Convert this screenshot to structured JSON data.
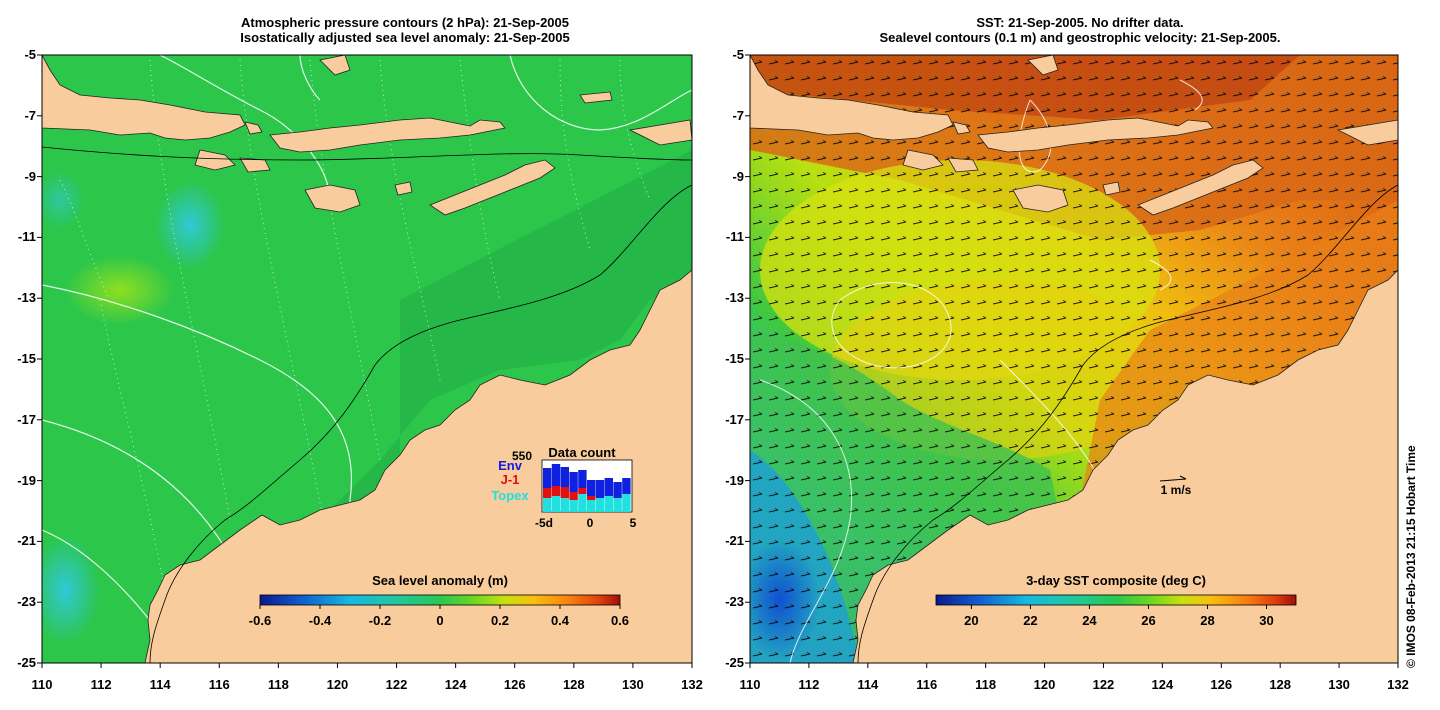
{
  "left_panel": {
    "title_line1": "Atmospheric pressure contours (2 hPa): 21-Sep-2005",
    "title_line2": "Isostatically adjusted sea level anomaly: 21-Sep-2005",
    "colorbar": {
      "label": "Sea level anomaly (m)",
      "ticks": [
        "-0.6",
        "-0.4",
        "-0.2",
        "0",
        "0.2",
        "0.4",
        "0.6"
      ],
      "colors": [
        "#0a1a8c",
        "#1060d0",
        "#18b8e0",
        "#20c8a0",
        "#28c850",
        "#70d820",
        "#c8e010",
        "#f8c010",
        "#f88010",
        "#e04010",
        "#a01008"
      ]
    },
    "inset": {
      "title": "Data count",
      "max_label": "550",
      "legend": [
        {
          "name": "Env",
          "color": "#1020e0"
        },
        {
          "name": "J-1",
          "color": "#e01010"
        },
        {
          "name": "Topex",
          "color": "#20e0e0"
        }
      ],
      "x_ticks": [
        "-5d",
        "0",
        "5"
      ]
    }
  },
  "right_panel": {
    "title_line1": "SST: 21-Sep-2005. No drifter data.",
    "title_line2": "Sealevel contours (0.1 m) and geostrophic velocity: 21-Sep-2005.",
    "colorbar": {
      "label": "3-day SST composite (deg C)",
      "ticks": [
        "20",
        "22",
        "24",
        "26",
        "28",
        "30"
      ],
      "colors": [
        "#0a1a8c",
        "#1060d0",
        "#18b8e0",
        "#20c8a0",
        "#28c850",
        "#70d820",
        "#c8e010",
        "#f8c010",
        "#f88010",
        "#e04010",
        "#a01008"
      ]
    },
    "velocity_scale_label": "1 m/s"
  },
  "axes": {
    "lat_ticks": [
      "-5",
      "-7",
      "-9",
      "-11",
      "-13",
      "-15",
      "-17",
      "-19",
      "-21",
      "-23",
      "-25"
    ],
    "lon_ticks": [
      "110",
      "112",
      "114",
      "116",
      "118",
      "120",
      "122",
      "124",
      "126",
      "128",
      "130",
      "132"
    ]
  },
  "credit": "© IMOS 08-Feb-2013 21:15 Hobart Time",
  "colors": {
    "land": "#f8cc9c",
    "ocean_green": "#2cc64a",
    "shelf_green": "#22b44a",
    "sst_orange": "#e87a18",
    "sst_yellow": "#d8e010"
  }
}
